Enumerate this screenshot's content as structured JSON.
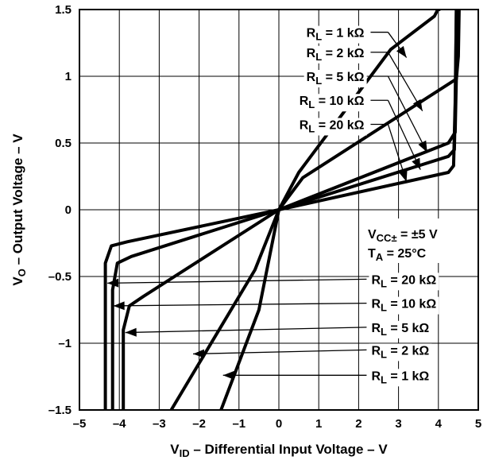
{
  "chart_data": {
    "type": "line",
    "title": "",
    "xlabel": {
      "prefix": "V",
      "sub": "ID",
      "suffix": " – Differential Input Voltage – V"
    },
    "ylabel": {
      "prefix": "V",
      "sub": "O",
      "suffix": " – Output Voltage – V"
    },
    "xlim": [
      -5,
      5
    ],
    "ylim": [
      -1.5,
      1.5
    ],
    "xticks": [
      -5,
      -4,
      -3,
      -2,
      -1,
      0,
      1,
      2,
      3,
      4,
      5
    ],
    "yticks": [
      1.5,
      1,
      0.5,
      0,
      -0.5,
      -1,
      -1.5
    ],
    "xtick_labels": [
      "–5",
      "–4",
      "–3",
      "–2",
      "–1",
      "0",
      "1",
      "2",
      "3",
      "4",
      "5"
    ],
    "ytick_labels": [
      "1.5",
      "1",
      "0.5",
      "0",
      "–0.5",
      "–1",
      "–1.5"
    ],
    "grid": true,
    "conditions": [
      {
        "prefix": "V",
        "sub": "CC±",
        "suffix": " = ±5 V"
      },
      {
        "prefix": "T",
        "sub": "A",
        "suffix": " = 25°C"
      }
    ],
    "series": [
      {
        "name": {
          "prefix": "R",
          "sub": "L",
          "suffix": " = 1 kΩ"
        },
        "points": [
          [
            -1.45,
            -1.5
          ],
          [
            -0.5,
            -0.75
          ],
          [
            0,
            0
          ],
          [
            0.5,
            0.28
          ],
          [
            2.8,
            1.2
          ],
          [
            3.9,
            1.45
          ],
          [
            4.02,
            1.52
          ],
          [
            4.02,
            1.5
          ]
        ]
      },
      {
        "name": {
          "prefix": "R",
          "sub": "L",
          "suffix": " = 2 kΩ"
        },
        "points": [
          [
            -2.7,
            -1.5
          ],
          [
            -0.6,
            -0.45
          ],
          [
            0,
            0
          ],
          [
            0.6,
            0.24
          ],
          [
            4.45,
            0.98
          ],
          [
            4.5,
            1.15
          ],
          [
            4.52,
            1.5
          ]
        ]
      },
      {
        "name": {
          "prefix": "R",
          "sub": "L",
          "suffix": " = 5 kΩ"
        },
        "points": [
          [
            -3.9,
            -1.5
          ],
          [
            -3.9,
            -0.9
          ],
          [
            -3.75,
            -0.72
          ],
          [
            -3.4,
            -0.65
          ],
          [
            0,
            0
          ],
          [
            4.25,
            0.5
          ],
          [
            4.42,
            0.58
          ],
          [
            4.45,
            1.0
          ],
          [
            4.47,
            1.5
          ]
        ]
      },
      {
        "name": {
          "prefix": "R",
          "sub": "L",
          "suffix": " = 10 kΩ"
        },
        "points": [
          [
            -4.17,
            -1.5
          ],
          [
            -4.17,
            -0.6
          ],
          [
            -4.05,
            -0.4
          ],
          [
            -3.7,
            -0.35
          ],
          [
            0,
            0
          ],
          [
            4.25,
            0.4
          ],
          [
            4.4,
            0.45
          ],
          [
            4.43,
            0.9
          ],
          [
            4.45,
            1.5
          ]
        ]
      },
      {
        "name": {
          "prefix": "R",
          "sub": "L",
          "suffix": " = 20 kΩ"
        },
        "points": [
          [
            -4.35,
            -1.5
          ],
          [
            -4.35,
            -0.4
          ],
          [
            -4.2,
            -0.27
          ],
          [
            -3.8,
            -0.24
          ],
          [
            0,
            0
          ],
          [
            4.25,
            0.28
          ],
          [
            4.38,
            0.33
          ],
          [
            4.42,
            0.8
          ],
          [
            4.45,
            1.5
          ]
        ]
      }
    ],
    "upper_labels": [
      {
        "series": 0,
        "y": 1.33,
        "x_end": 2.3,
        "arrow_to": [
          3.2,
          1.14
        ]
      },
      {
        "series": 1,
        "y": 1.18,
        "x_end": 2.3,
        "arrow_to": [
          3.6,
          0.74
        ]
      },
      {
        "series": 2,
        "y": 1.0,
        "x_end": 2.3,
        "arrow_to": [
          3.72,
          0.43
        ]
      },
      {
        "series": 3,
        "y": 0.82,
        "x_end": 2.3,
        "arrow_to": [
          3.55,
          0.3
        ]
      },
      {
        "series": 4,
        "y": 0.64,
        "x_end": 2.3,
        "arrow_to": [
          3.2,
          0.21
        ]
      }
    ],
    "lower_labels": [
      {
        "series": 4,
        "y": -0.52,
        "x_start": 2.2,
        "arrow_to": [
          -4.3,
          -0.55
        ]
      },
      {
        "series": 3,
        "y": -0.7,
        "x_start": 2.2,
        "arrow_to": [
          -4.15,
          -0.72
        ]
      },
      {
        "series": 2,
        "y": -0.88,
        "x_start": 2.2,
        "arrow_to": [
          -3.85,
          -0.92
        ]
      },
      {
        "series": 1,
        "y": -1.05,
        "x_start": 2.2,
        "arrow_to": [
          -2.15,
          -1.08
        ]
      },
      {
        "series": 0,
        "y": -1.24,
        "x_start": 2.2,
        "arrow_to": [
          -1.4,
          -1.24
        ]
      }
    ]
  }
}
